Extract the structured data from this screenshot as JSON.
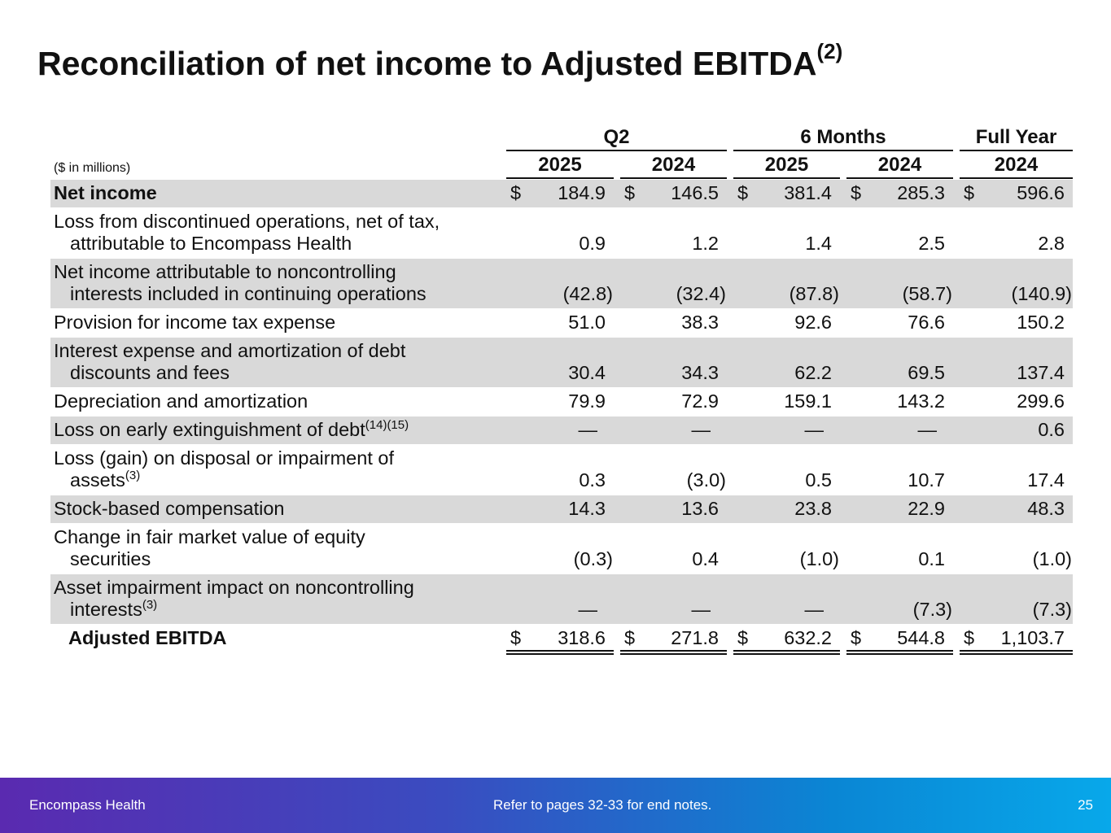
{
  "title": "Reconciliation of net income to Adjusted EBITDA",
  "title_note": "(2)",
  "table": {
    "unit": "($ in millions)",
    "currency": "$",
    "groups": [
      "Q2",
      "6 Months",
      "Full Year"
    ],
    "years": [
      "2025",
      "2024",
      "2025",
      "2024",
      "2024"
    ],
    "rows": [
      {
        "label": [
          "Net income"
        ],
        "values": [
          "184.9",
          "146.5",
          "381.4",
          "285.3",
          "596.6"
        ],
        "shaded": true,
        "bold": true,
        "dollar": true
      },
      {
        "label": [
          "Loss from discontinued operations, net of tax,",
          "attributable to Encompass Health"
        ],
        "values": [
          "0.9",
          "1.2",
          "1.4",
          "2.5",
          "2.8"
        ]
      },
      {
        "label": [
          "Net income attributable to noncontrolling",
          "interests included in continuing operations"
        ],
        "values": [
          "(42.8)",
          "(32.4)",
          "(87.8)",
          "(58.7)",
          "(140.9)"
        ],
        "shaded": true
      },
      {
        "label": [
          "Provision for income tax expense"
        ],
        "values": [
          "51.0",
          "38.3",
          "92.6",
          "76.6",
          "150.2"
        ]
      },
      {
        "label": [
          "Interest expense and amortization of debt",
          "discounts and fees"
        ],
        "values": [
          "30.4",
          "34.3",
          "62.2",
          "69.5",
          "137.4"
        ],
        "shaded": true
      },
      {
        "label": [
          "Depreciation and amortization"
        ],
        "values": [
          "79.9",
          "72.9",
          "159.1",
          "143.2",
          "299.6"
        ]
      },
      {
        "label": [
          "Loss on early extinguishment of debt"
        ],
        "note": "(14)(15)",
        "values": [
          "—",
          "—",
          "—",
          "—",
          "0.6"
        ],
        "shaded": true
      },
      {
        "label": [
          "Loss (gain) on disposal or impairment of",
          "assets"
        ],
        "note": "(3)",
        "values": [
          "0.3",
          "(3.0)",
          "0.5",
          "10.7",
          "17.4"
        ]
      },
      {
        "label": [
          "Stock-based compensation"
        ],
        "values": [
          "14.3",
          "13.6",
          "23.8",
          "22.9",
          "48.3"
        ],
        "shaded": true
      },
      {
        "label": [
          "Change in fair market value of equity",
          "securities"
        ],
        "values": [
          "(0.3)",
          "0.4",
          "(1.0)",
          "0.1",
          "(1.0)"
        ]
      },
      {
        "label": [
          "Asset impairment impact on noncontrolling",
          "interests"
        ],
        "note": "(3)",
        "values": [
          "—",
          "—",
          "—",
          "(7.3)",
          "(7.3)"
        ],
        "shaded": true
      },
      {
        "label": [
          "Adjusted EBITDA"
        ],
        "values": [
          "318.6",
          "271.8",
          "632.2",
          "544.8",
          "1,103.7"
        ],
        "bold": true,
        "dollar": true,
        "total": true
      }
    ]
  },
  "footer": {
    "company": "Encompass Health",
    "note": "Refer to pages 32-33 for end notes.",
    "page": "25"
  }
}
